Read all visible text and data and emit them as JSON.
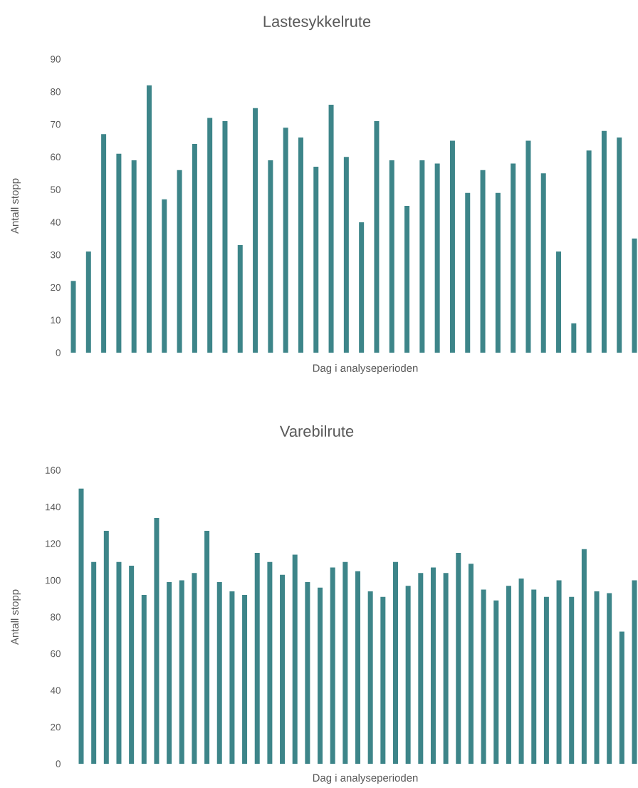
{
  "chart_data": [
    {
      "type": "bar",
      "title": "Lastesykkelrute",
      "xlabel": "Dag i analyseperioden",
      "ylabel": "Antall stopp",
      "categories": [
        null,
        null,
        null,
        null,
        null,
        null,
        null,
        null,
        null,
        null,
        null,
        null,
        null,
        null,
        null,
        null,
        null,
        null,
        null,
        null,
        null,
        null,
        null,
        null,
        null,
        null,
        null,
        null,
        null,
        null,
        null,
        null,
        null,
        null,
        null,
        null,
        null,
        null
      ],
      "values": [
        22,
        31,
        67,
        61,
        59,
        82,
        47,
        56,
        64,
        72,
        71,
        33,
        75,
        59,
        69,
        66,
        57,
        76,
        60,
        40,
        71,
        59,
        45,
        59,
        58,
        65,
        49,
        56,
        49,
        58,
        65,
        55,
        31,
        9,
        62,
        68,
        66,
        35
      ],
      "color": "#3d8589",
      "ylim": [
        0,
        90
      ],
      "yticks": [
        0,
        10,
        20,
        30,
        40,
        50,
        60,
        70,
        80,
        90
      ]
    },
    {
      "type": "bar",
      "title": "Varebilrute",
      "xlabel": "Dag i analyseperioden",
      "ylabel": "Antall stopp",
      "categories": [
        null,
        null,
        null,
        null,
        null,
        null,
        null,
        null,
        null,
        null,
        null,
        null,
        null,
        null,
        null,
        null,
        null,
        null,
        null,
        null,
        null,
        null,
        null,
        null,
        null,
        null,
        null,
        null,
        null,
        null,
        null,
        null,
        null,
        null,
        null,
        null,
        null,
        null,
        null,
        null,
        null,
        null,
        null,
        null,
        null
      ],
      "values": [
        150,
        110,
        127,
        110,
        108,
        92,
        134,
        99,
        100,
        104,
        127,
        99,
        94,
        92,
        115,
        110,
        103,
        114,
        99,
        96,
        107,
        110,
        105,
        94,
        91,
        110,
        97,
        104,
        107,
        104,
        115,
        109,
        95,
        89,
        97,
        101,
        95,
        91,
        100,
        91,
        117,
        94,
        93,
        72,
        100
      ],
      "color": "#3d8589",
      "ylim": [
        0,
        160
      ],
      "yticks": [
        0,
        20,
        40,
        60,
        80,
        100,
        120,
        140,
        160
      ]
    }
  ]
}
